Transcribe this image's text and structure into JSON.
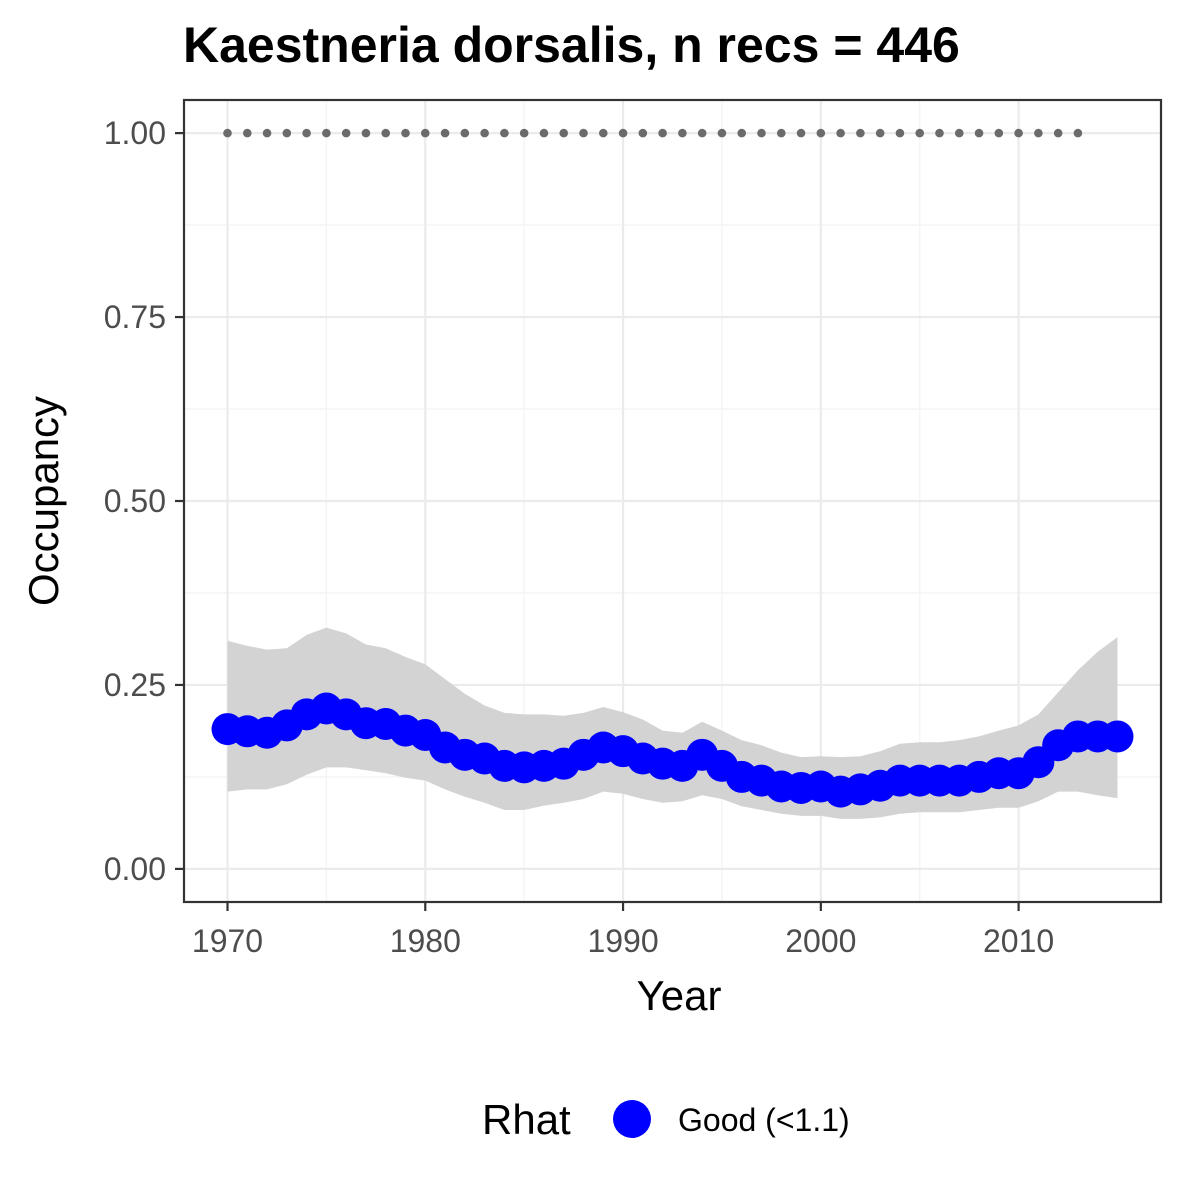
{
  "chart_data": {
    "type": "line",
    "title": "Kaestneria dorsalis, n recs = 446",
    "xlabel": "Year",
    "ylabel": "Occupancy",
    "xlim": [
      1967.8,
      2017.2
    ],
    "ylim": [
      -0.045,
      1.045
    ],
    "x_ticks": [
      1970,
      1980,
      1990,
      2000,
      2010
    ],
    "x_tick_labels": [
      "1970",
      "1980",
      "1990",
      "2000",
      "2010"
    ],
    "y_ticks": [
      0,
      0.25,
      0.5,
      0.75,
      1.0
    ],
    "y_tick_labels": [
      "0.00",
      "0.25",
      "0.50",
      "0.75",
      "1.00"
    ],
    "grid": true,
    "colors": {
      "point": "#0000ff",
      "ribbon": "#d3d3d3",
      "reference": "#6b6b6b",
      "panel_border": "#333333",
      "grid_major": "#ebebeb",
      "grid_minor": "#f4f4f4"
    },
    "x": [
      1970,
      1971,
      1972,
      1973,
      1974,
      1975,
      1976,
      1977,
      1978,
      1979,
      1980,
      1981,
      1982,
      1983,
      1984,
      1985,
      1986,
      1987,
      1988,
      1989,
      1990,
      1991,
      1992,
      1993,
      1994,
      1995,
      1996,
      1997,
      1998,
      1999,
      2000,
      2001,
      2002,
      2003,
      2004,
      2005,
      2006,
      2007,
      2008,
      2009,
      2010,
      2011,
      2012,
      2013,
      2014,
      2015
    ],
    "series": [
      {
        "values": [
          0.19,
          0.187,
          0.185,
          0.195,
          0.21,
          0.218,
          0.21,
          0.198,
          0.197,
          0.188,
          0.182,
          0.165,
          0.155,
          0.15,
          0.14,
          0.138,
          0.14,
          0.143,
          0.155,
          0.165,
          0.16,
          0.15,
          0.143,
          0.14,
          0.155,
          0.14,
          0.125,
          0.12,
          0.112,
          0.11,
          0.112,
          0.105,
          0.108,
          0.113,
          0.12,
          0.12,
          0.12,
          0.12,
          0.125,
          0.13,
          0.13,
          0.145,
          0.168,
          0.18,
          0.18,
          0.18
        ],
        "lower": [
          0.105,
          0.108,
          0.108,
          0.115,
          0.128,
          0.138,
          0.138,
          0.134,
          0.13,
          0.124,
          0.12,
          0.108,
          0.098,
          0.09,
          0.08,
          0.08,
          0.086,
          0.09,
          0.095,
          0.105,
          0.102,
          0.095,
          0.09,
          0.092,
          0.1,
          0.095,
          0.085,
          0.08,
          0.075,
          0.072,
          0.072,
          0.068,
          0.068,
          0.07,
          0.075,
          0.077,
          0.077,
          0.077,
          0.08,
          0.083,
          0.083,
          0.092,
          0.105,
          0.105,
          0.1,
          0.096
        ],
        "upper": [
          0.31,
          0.303,
          0.298,
          0.3,
          0.318,
          0.328,
          0.32,
          0.305,
          0.3,
          0.288,
          0.278,
          0.258,
          0.238,
          0.222,
          0.212,
          0.21,
          0.21,
          0.208,
          0.212,
          0.22,
          0.213,
          0.203,
          0.188,
          0.185,
          0.2,
          0.188,
          0.175,
          0.168,
          0.158,
          0.152,
          0.153,
          0.152,
          0.153,
          0.16,
          0.17,
          0.172,
          0.172,
          0.175,
          0.18,
          0.188,
          0.195,
          0.21,
          0.24,
          0.27,
          0.295,
          0.315
        ]
      }
    ],
    "reference": {
      "x": [
        1970,
        1971,
        1972,
        1973,
        1974,
        1975,
        1976,
        1977,
        1978,
        1979,
        1980,
        1981,
        1982,
        1983,
        1984,
        1985,
        1986,
        1987,
        1988,
        1989,
        1990,
        1991,
        1992,
        1993,
        1994,
        1995,
        1996,
        1997,
        1998,
        1999,
        2000,
        2001,
        2002,
        2003,
        2004,
        2005,
        2006,
        2007,
        2008,
        2009,
        2010,
        2011,
        2012,
        2013
      ],
      "value": 1.0
    },
    "legend": {
      "title": "Rhat",
      "items": [
        {
          "label": "Good (<1.1)",
          "color": "#0000ff"
        }
      ],
      "position": "bottom"
    }
  }
}
